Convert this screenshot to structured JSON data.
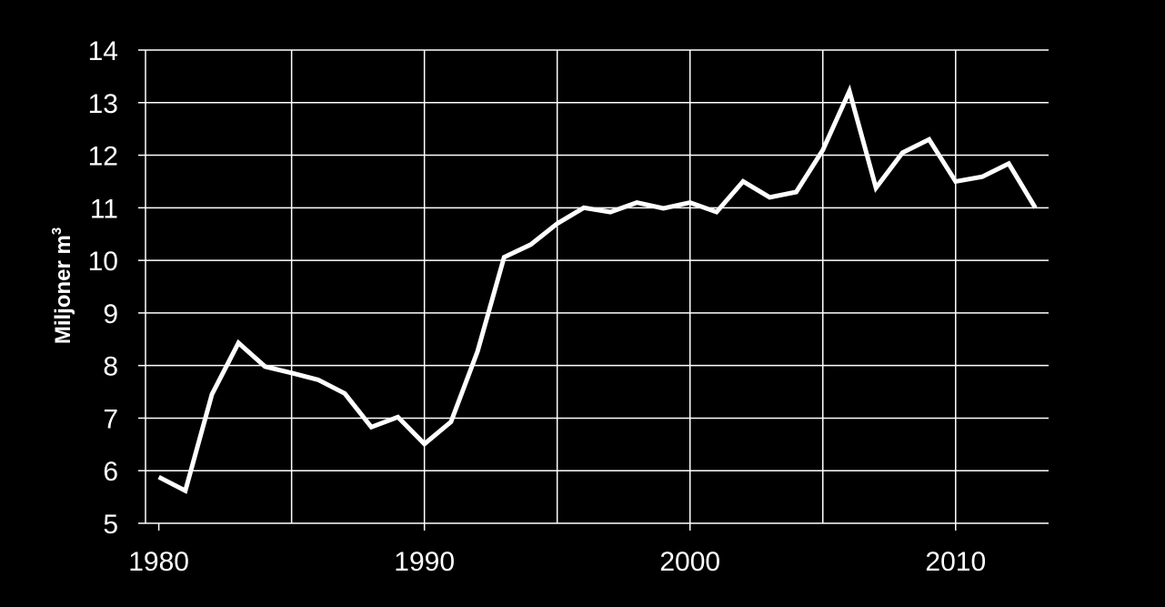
{
  "chart_data": {
    "type": "line",
    "title": "",
    "xlabel": "",
    "ylabel": "Miljoner m",
    "ylabel_superscript": "3",
    "xlim": [
      1979.5,
      2013.5
    ],
    "ylim": [
      5,
      14
    ],
    "xticks": [
      1980,
      1990,
      2000,
      2010
    ],
    "yticks": [
      5,
      6,
      7,
      8,
      9,
      10,
      11,
      12,
      13,
      14
    ],
    "grid": true,
    "legend": "none",
    "colors": {
      "background": "#000000",
      "line": "#ffffff",
      "grid": "#ffffff"
    },
    "series": [
      {
        "x": [
          1980,
          1981,
          1982,
          1983,
          1984,
          1985,
          1986,
          1987,
          1988,
          1989,
          1990,
          1991,
          1992,
          1993,
          1994,
          1995,
          1996,
          1997,
          1998,
          1999,
          2000,
          2001,
          2002,
          2003,
          2004,
          2005,
          2006,
          2007,
          2008,
          2009,
          2010,
          2011,
          2012,
          2013
        ],
        "values": [
          5.88,
          5.62,
          7.45,
          8.43,
          7.98,
          7.86,
          7.73,
          7.47,
          6.83,
          7.02,
          6.51,
          6.93,
          8.27,
          10.06,
          10.3,
          10.7,
          11.0,
          10.92,
          11.1,
          10.99,
          11.1,
          10.92,
          11.5,
          11.2,
          11.3,
          12.1,
          13.22,
          11.38,
          12.05,
          12.3,
          11.5,
          11.59,
          11.84,
          11.0
        ]
      }
    ]
  }
}
